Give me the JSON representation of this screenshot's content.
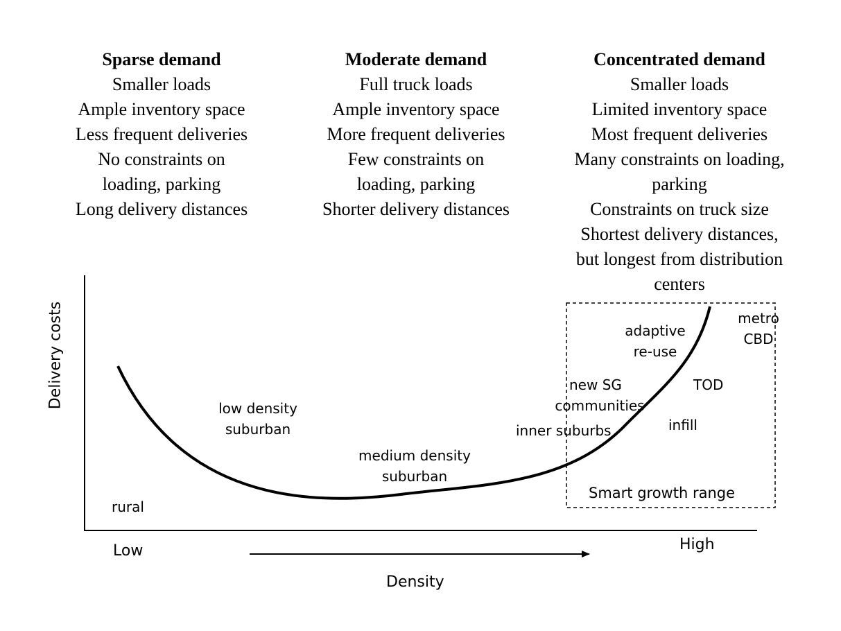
{
  "columns": [
    {
      "id": "sparse",
      "heading": "Sparse demand",
      "lines": [
        "Smaller loads",
        "Ample inventory space",
        "Less frequent deliveries",
        "No constraints on",
        "loading, parking",
        "Long delivery distances"
      ]
    },
    {
      "id": "moderate",
      "heading": "Moderate demand",
      "lines": [
        "Full truck loads",
        "Ample inventory space",
        "More frequent deliveries",
        "Few constraints on",
        "loading, parking",
        "Shorter delivery distances"
      ]
    },
    {
      "id": "concentrated",
      "heading": "Concentrated demand",
      "lines": [
        "Smaller loads",
        "Limited inventory space",
        "Most frequent deliveries",
        "Many constraints on loading,",
        "parking",
        "Constraints on truck size",
        "Shortest delivery distances,",
        "but longest from distribution",
        "centers"
      ]
    }
  ],
  "axes": {
    "y_label": "Delivery costs",
    "x_label": "Density",
    "x_low": "Low",
    "x_high": "High"
  },
  "curve_labels": {
    "rural": "rural",
    "low_density": [
      "low density",
      "suburban"
    ],
    "medium_density": [
      "medium density",
      "suburban"
    ],
    "inner_suburbs": "inner suburbs",
    "new_sg": [
      "new SG",
      "communities"
    ],
    "adaptive_reuse": [
      "adaptive",
      "re-use"
    ],
    "tod": "TOD",
    "infill": "infill",
    "metro_cbd": [
      "metro",
      "CBD"
    ]
  },
  "range_box_label": "Smart growth range"
}
